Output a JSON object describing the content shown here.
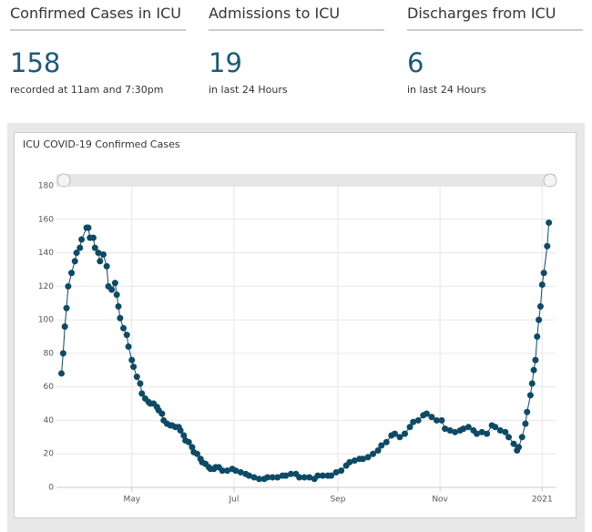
{
  "stats": [
    {
      "title": "Confirmed Cases in ICU",
      "value": "158",
      "note": "recorded at 11am and 7:30pm"
    },
    {
      "title": "Admissions to ICU",
      "value": "19",
      "note": "in last 24 Hours"
    },
    {
      "title": "Discharges from ICU",
      "value": "6",
      "note": "in last 24 Hours"
    }
  ],
  "chart_data": {
    "type": "line",
    "title": "ICU COVID-19 Confirmed Cases",
    "color": "#0d4a66",
    "grid": true,
    "x": [
      0,
      1,
      2,
      3,
      4,
      6,
      8,
      9,
      11,
      12,
      15,
      16,
      17,
      19,
      20,
      22,
      23,
      25,
      27,
      28,
      30,
      32,
      33,
      34,
      35,
      37,
      39,
      40,
      42,
      43,
      45,
      47,
      48,
      50,
      52,
      53,
      55,
      57,
      58,
      60,
      61,
      63,
      65,
      66,
      68,
      70,
      71,
      73,
      74,
      76,
      78,
      79,
      81,
      83,
      84,
      86,
      88,
      89,
      91,
      92,
      94,
      96,
      99,
      102,
      104,
      107,
      110,
      112,
      115,
      118,
      121,
      123,
      126,
      129,
      132,
      134,
      137,
      140,
      142,
      145,
      148,
      151,
      153,
      156,
      159,
      161,
      164,
      167,
      170,
      172,
      175,
      178,
      180,
      183,
      186,
      189,
      191,
      194,
      197,
      199,
      202,
      205,
      208,
      210,
      213,
      216,
      218,
      221,
      224,
      227,
      229,
      232,
      235,
      238,
      240,
      243,
      246,
      248,
      251,
      254,
      257,
      259,
      262,
      265,
      267,
      270,
      272,
      273,
      275,
      277,
      278,
      280,
      281,
      282,
      283,
      284,
      285,
      286,
      287,
      288,
      290,
      291
    ],
    "series": [
      {
        "name": "ICU COVID-19 Confirmed Cases",
        "color": "#0d4a66",
        "values": [
          68,
          80,
          96,
          107,
          120,
          128,
          135,
          140,
          143,
          148,
          155,
          155,
          149,
          149,
          143,
          140,
          135,
          139,
          132,
          120,
          118,
          122,
          115,
          108,
          101,
          95,
          91,
          84,
          76,
          72,
          66,
          62,
          56,
          53,
          51,
          50,
          50,
          48,
          46,
          44,
          40,
          38,
          37,
          37,
          36,
          36,
          34,
          31,
          28,
          27,
          24,
          21,
          20,
          17,
          15,
          14,
          12,
          11,
          11,
          12,
          12,
          10,
          10,
          11,
          10,
          9,
          8,
          7,
          6,
          5,
          5,
          6,
          6,
          6,
          7,
          7,
          8,
          8,
          6,
          6,
          6,
          5,
          7,
          7,
          7,
          7,
          9,
          10,
          13,
          15,
          16,
          17,
          17,
          18,
          20,
          22,
          25,
          27,
          31,
          32,
          30,
          32,
          36,
          39,
          40,
          43,
          44,
          42,
          40,
          40,
          35,
          34,
          33,
          34,
          35,
          36,
          34,
          32,
          33,
          32,
          37,
          36,
          34,
          33,
          30,
          26,
          22,
          24,
          30,
          38,
          45,
          55,
          62,
          70,
          76,
          90,
          100,
          108,
          121,
          128,
          144,
          158
        ]
      }
    ],
    "xlim": [
      -3,
      295
    ],
    "xticks": [
      {
        "value": 42,
        "label": "May"
      },
      {
        "value": 103,
        "label": "Jul"
      },
      {
        "value": 165,
        "label": "Sep"
      },
      {
        "value": 226,
        "label": "Nov"
      },
      {
        "value": 287,
        "label": "2021"
      }
    ],
    "ylim": [
      0,
      180
    ],
    "yticks": [
      0,
      20,
      40,
      60,
      80,
      100,
      120,
      140,
      160,
      180
    ]
  }
}
